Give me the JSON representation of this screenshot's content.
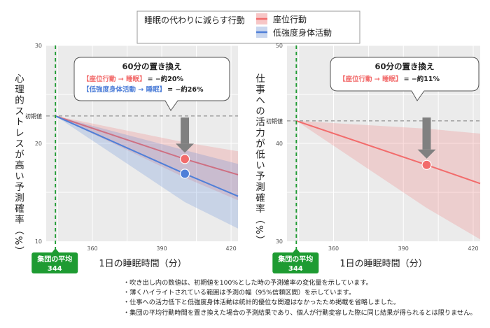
{
  "legend": {
    "title": "睡眠の代わりに減らす行動",
    "items": [
      {
        "label": "座位行動",
        "color": "#F26B6B"
      },
      {
        "label": "低強度身体活動",
        "color": "#4F7FD8"
      }
    ]
  },
  "baseline_label": "初期値",
  "group_mean": {
    "line1": "集団の平均",
    "line2": "344",
    "color": "#1E9B32"
  },
  "xlabel": "1日の睡眠時間（分）",
  "chart_data": [
    {
      "type": "line",
      "ylabel": "心理的ストレスが高い予測確率（%）",
      "xlabel": "1日の睡眠時間（分）",
      "xlim": [
        340,
        423
      ],
      "ylim": [
        10,
        30
      ],
      "xticks": [
        "360",
        "390",
        "420"
      ],
      "yticks": [
        "30",
        "20"
      ],
      "baseline": 22.8,
      "group_mean_x": 344,
      "grid": true,
      "series": [
        {
          "name": "座位行動",
          "x": [
            344,
            400,
            423
          ],
          "y": [
            22.8,
            18.4,
            16.8
          ],
          "ci_low": [
            22.8,
            16.5,
            14.2
          ],
          "ci_high": [
            22.8,
            20.1,
            19.2
          ],
          "marker": {
            "x": 400,
            "y": 18.4
          }
        },
        {
          "name": "低強度身体活動",
          "x": [
            344,
            400,
            423
          ],
          "y": [
            22.8,
            16.9,
            14.6
          ],
          "ci_low": [
            22.8,
            14.0,
            11.3
          ],
          "ci_high": [
            22.8,
            19.3,
            17.9
          ],
          "marker": {
            "x": 400,
            "y": 16.9
          }
        }
      ],
      "callout": {
        "title": "60分の置き換え",
        "lines": [
          {
            "label": "【座位行動 → 睡眠】",
            "value": "= −約20%",
            "color": "#F26B6B"
          },
          {
            "label": "【低強度身体活動 → 睡眠】",
            "value": "= −約26%",
            "color": "#4F7FD8"
          }
        ]
      }
    },
    {
      "type": "line",
      "ylabel": "仕事への活力が低い予測確率（%）",
      "xlabel": "1日の睡眠時間（分）",
      "xlim": [
        340,
        423
      ],
      "ylim": [
        30,
        50
      ],
      "xticks": [
        "360",
        "390",
        "420"
      ],
      "yticks": [
        "50",
        "40",
        "30"
      ],
      "baseline": 42.3,
      "group_mean_x": 344,
      "grid": true,
      "series": [
        {
          "name": "座位行動",
          "x": [
            344,
            400,
            423
          ],
          "y": [
            42.3,
            37.8,
            35.9
          ],
          "ci_low": [
            42.3,
            33.4,
            30.2
          ],
          "ci_high": [
            42.3,
            41.5,
            41.0
          ],
          "marker": {
            "x": 400,
            "y": 37.8
          }
        }
      ],
      "callout": {
        "title": "60分の置き換え",
        "lines": [
          {
            "label": "【座位行動 → 睡眠】",
            "value": "= −約11%",
            "color": "#F26B6B"
          }
        ]
      }
    }
  ],
  "notes": [
    "・吹き出し内の数値は、初期値を100%とした時の予測確率の変化量を示しています。",
    "・薄くハイライトされている範囲は予測の幅（95%信頼区間）を示しています。",
    "・仕事への活力低下と低強度身体活動は統計的優位な関連はなかったため掲載を省略しました。",
    "・集団の平均行動時間を置き換えた場合の予測結果であり、個人が行動変容した際に同じ結果が得られるとは限りません。"
  ]
}
